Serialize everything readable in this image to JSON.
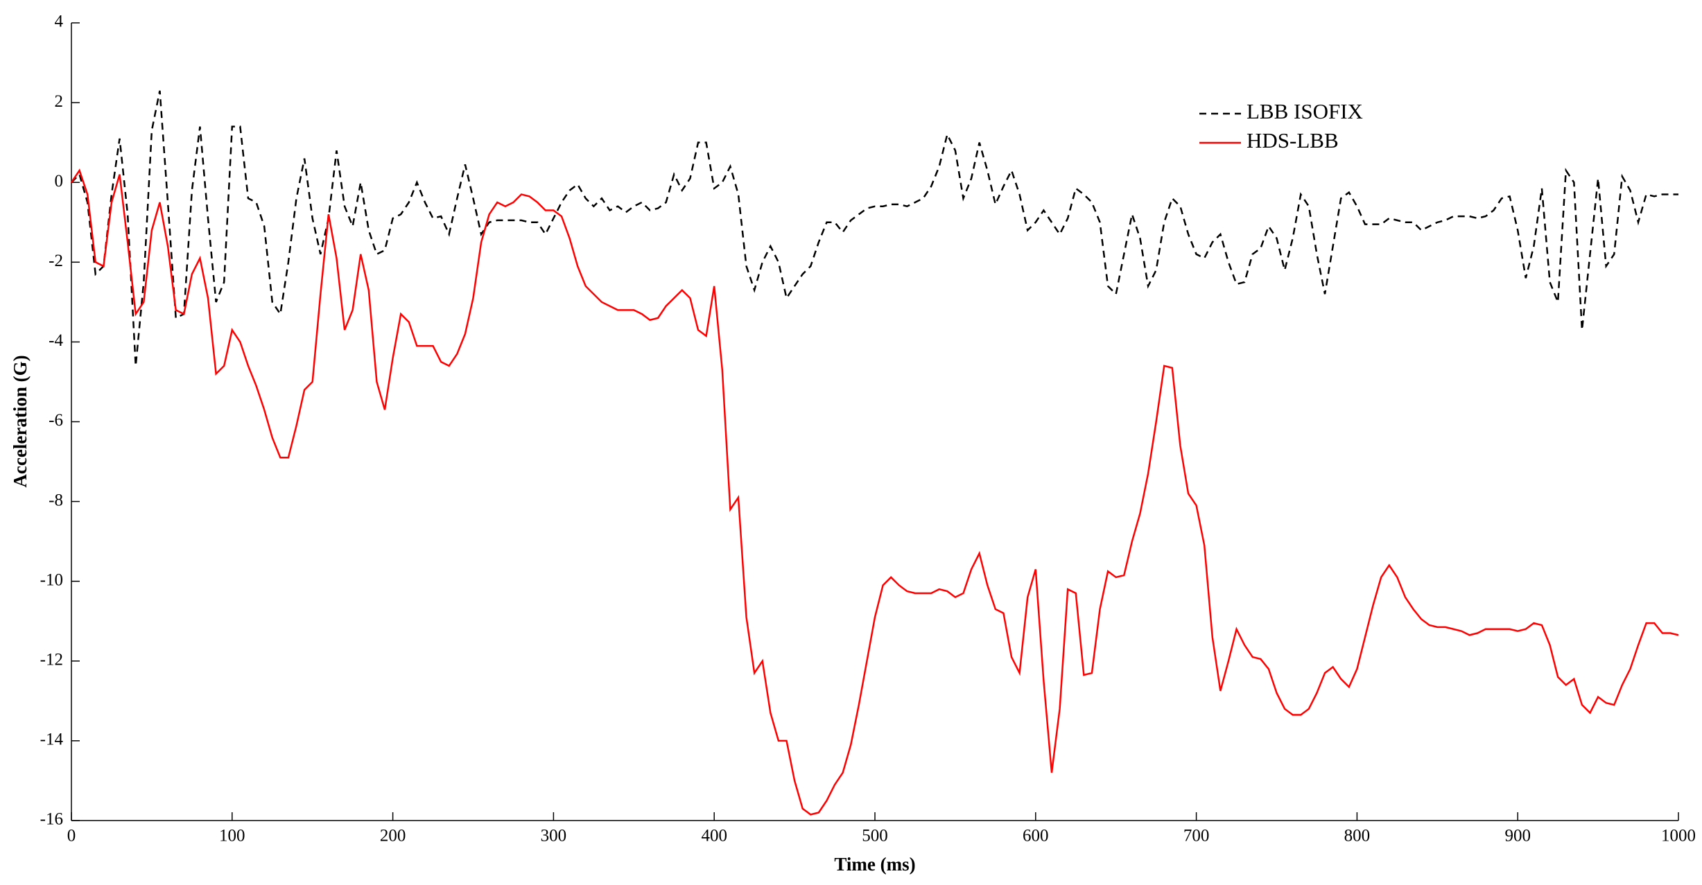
{
  "chart_data": {
    "type": "line",
    "xlabel": "Time (ms)",
    "ylabel": "Acceleration (G)",
    "x": [
      0,
      5,
      10,
      15,
      20,
      25,
      30,
      35,
      40,
      45,
      50,
      55,
      60,
      65,
      70,
      75,
      80,
      85,
      90,
      95,
      100,
      105,
      110,
      115,
      120,
      125,
      130,
      135,
      140,
      145,
      150,
      155,
      160,
      165,
      170,
      175,
      180,
      185,
      190,
      195,
      200,
      205,
      210,
      215,
      220,
      225,
      230,
      235,
      240,
      245,
      250,
      255,
      260,
      265,
      270,
      275,
      280,
      285,
      290,
      295,
      300,
      305,
      310,
      315,
      320,
      325,
      330,
      335,
      340,
      345,
      350,
      355,
      360,
      365,
      370,
      375,
      380,
      385,
      390,
      395,
      400,
      405,
      410,
      415,
      420,
      425,
      430,
      435,
      440,
      445,
      450,
      455,
      460,
      465,
      470,
      475,
      480,
      485,
      490,
      495,
      500,
      505,
      510,
      515,
      520,
      525,
      530,
      535,
      540,
      545,
      550,
      555,
      560,
      565,
      570,
      575,
      580,
      585,
      590,
      595,
      600,
      605,
      610,
      615,
      620,
      625,
      630,
      635,
      640,
      645,
      650,
      655,
      660,
      665,
      670,
      675,
      680,
      685,
      690,
      695,
      700,
      705,
      710,
      715,
      720,
      725,
      730,
      735,
      740,
      745,
      750,
      755,
      760,
      765,
      770,
      775,
      780,
      785,
      790,
      795,
      800,
      805,
      810,
      815,
      820,
      825,
      830,
      835,
      840,
      845,
      850,
      855,
      860,
      865,
      870,
      875,
      880,
      885,
      890,
      895,
      900,
      905,
      910,
      915,
      920,
      925,
      930,
      935,
      940,
      945,
      950,
      955,
      960,
      965,
      970,
      975,
      980,
      985,
      990,
      995,
      1000
    ],
    "series": [
      {
        "name": "LBB ISOFIX",
        "color": "#000000",
        "linestyle": "dashed",
        "values": [
          0,
          0.2,
          -0.5,
          -2.3,
          -2.1,
          -0.3,
          1.1,
          -0.8,
          -4.6,
          -2.5,
          1.3,
          2.3,
          -0.5,
          -3.4,
          -3.3,
          -0.2,
          1.4,
          -0.9,
          -3.0,
          -2.5,
          1.4,
          1.4,
          -0.4,
          -0.5,
          -1.1,
          -3.0,
          -3.3,
          -2.0,
          -0.4,
          0.6,
          -0.9,
          -1.8,
          -0.9,
          0.8,
          -0.6,
          -1.1,
          0.0,
          -1.2,
          -1.8,
          -1.7,
          -0.9,
          -0.8,
          -0.5,
          0.0,
          -0.5,
          -0.9,
          -0.85,
          -1.3,
          -0.4,
          0.45,
          -0.4,
          -1.3,
          -1.0,
          -0.95,
          -0.95,
          -0.95,
          -0.95,
          -1.0,
          -1.0,
          -1.3,
          -0.9,
          -0.5,
          -0.2,
          -0.05,
          -0.4,
          -0.6,
          -0.4,
          -0.7,
          -0.6,
          -0.75,
          -0.6,
          -0.5,
          -0.7,
          -0.65,
          -0.5,
          0.2,
          -0.2,
          0.1,
          1.0,
          1.0,
          -0.15,
          0.0,
          0.4,
          -0.3,
          -2.1,
          -2.7,
          -2.0,
          -1.6,
          -2.0,
          -2.9,
          -2.6,
          -2.3,
          -2.1,
          -1.5,
          -1.0,
          -1.0,
          -1.25,
          -0.95,
          -0.8,
          -0.65,
          -0.6,
          -0.6,
          -0.55,
          -0.55,
          -0.6,
          -0.5,
          -0.4,
          -0.1,
          0.4,
          1.2,
          0.8,
          -0.4,
          0.1,
          1.0,
          0.3,
          -0.55,
          -0.1,
          0.3,
          -0.3,
          -1.2,
          -1.0,
          -0.7,
          -1.0,
          -1.3,
          -0.9,
          -0.15,
          -0.3,
          -0.5,
          -1.0,
          -2.6,
          -2.8,
          -1.8,
          -0.8,
          -1.4,
          -2.6,
          -2.2,
          -1.0,
          -0.4,
          -0.6,
          -1.3,
          -1.8,
          -1.9,
          -1.5,
          -1.3,
          -2.0,
          -2.55,
          -2.5,
          -1.8,
          -1.65,
          -1.1,
          -1.4,
          -2.2,
          -1.4,
          -0.3,
          -0.6,
          -1.8,
          -2.8,
          -1.6,
          -0.4,
          -0.25,
          -0.6,
          -1.05,
          -1.05,
          -1.05,
          -0.9,
          -0.95,
          -1.0,
          -1.0,
          -1.2,
          -1.1,
          -1.0,
          -0.95,
          -0.85,
          -0.85,
          -0.85,
          -0.9,
          -0.85,
          -0.7,
          -0.4,
          -0.35,
          -1.2,
          -2.4,
          -1.6,
          -0.15,
          -2.5,
          -3.0,
          0.3,
          0.0,
          -3.7,
          -1.8,
          0.1,
          -2.1,
          -1.8,
          0.15,
          -0.2,
          -1.0,
          -0.3,
          -0.35,
          -0.3,
          -0.3,
          -0.3
        ]
      },
      {
        "name": "HDS-LBB",
        "color": "#ff0000",
        "linestyle": "solid",
        "values": [
          0,
          0.3,
          -0.3,
          -2.0,
          -2.1,
          -0.5,
          0.2,
          -1.5,
          -3.3,
          -3.0,
          -1.2,
          -0.5,
          -1.6,
          -3.2,
          -3.3,
          -2.3,
          -1.9,
          -2.9,
          -4.8,
          -4.6,
          -3.7,
          -4.0,
          -4.6,
          -5.1,
          -5.7,
          -6.4,
          -6.9,
          -6.9,
          -6.1,
          -5.2,
          -5.0,
          -2.8,
          -0.8,
          -1.9,
          -3.7,
          -3.2,
          -1.8,
          -2.7,
          -5.0,
          -5.7,
          -4.4,
          -3.3,
          -3.5,
          -4.1,
          -4.1,
          -4.1,
          -4.5,
          -4.6,
          -4.3,
          -3.8,
          -2.9,
          -1.5,
          -0.8,
          -0.5,
          -0.6,
          -0.5,
          -0.3,
          -0.35,
          -0.5,
          -0.7,
          -0.7,
          -0.85,
          -1.4,
          -2.1,
          -2.6,
          -2.8,
          -3.0,
          -3.1,
          -3.2,
          -3.2,
          -3.2,
          -3.3,
          -3.45,
          -3.4,
          -3.1,
          -2.9,
          -2.7,
          -2.9,
          -3.7,
          -3.85,
          -2.6,
          -4.7,
          -8.2,
          -7.9,
          -10.9,
          -12.3,
          -12.0,
          -13.3,
          -14.0,
          -14.0,
          -15.0,
          -15.7,
          -15.85,
          -15.8,
          -15.5,
          -15.1,
          -14.8,
          -14.1,
          -13.1,
          -12.0,
          -10.9,
          -10.1,
          -9.9,
          -10.1,
          -10.25,
          -10.3,
          -10.3,
          -10.3,
          -10.2,
          -10.25,
          -10.4,
          -10.3,
          -9.7,
          -9.3,
          -10.1,
          -10.7,
          -10.8,
          -11.9,
          -12.3,
          -10.4,
          -9.7,
          -12.5,
          -14.8,
          -13.2,
          -10.2,
          -10.3,
          -12.35,
          -12.3,
          -10.7,
          -9.75,
          -9.9,
          -9.85,
          -9.0,
          -8.3,
          -7.3,
          -6.0,
          -4.6,
          -4.65,
          -6.6,
          -7.8,
          -8.1,
          -9.1,
          -11.4,
          -12.75,
          -12.0,
          -11.2,
          -11.6,
          -11.9,
          -11.95,
          -12.2,
          -12.8,
          -13.2,
          -13.35,
          -13.35,
          -13.2,
          -12.8,
          -12.3,
          -12.15,
          -12.45,
          -12.65,
          -12.2,
          -11.4,
          -10.6,
          -9.9,
          -9.6,
          -9.9,
          -10.4,
          -10.7,
          -10.95,
          -11.1,
          -11.15,
          -11.15,
          -11.2,
          -11.25,
          -11.35,
          -11.3,
          -11.2,
          -11.2,
          -11.2,
          -11.2,
          -11.25,
          -11.2,
          -11.05,
          -11.1,
          -11.6,
          -12.4,
          -12.6,
          -12.45,
          -13.1,
          -13.3,
          -12.9,
          -13.05,
          -13.1,
          -12.6,
          -12.2,
          -11.6,
          -11.05,
          -11.05,
          -11.3,
          -11.3,
          -11.35
        ]
      }
    ],
    "xlim": [
      0,
      1000
    ],
    "xticks": [
      0,
      100,
      200,
      300,
      400,
      500,
      600,
      700,
      800,
      900,
      1000
    ],
    "ylim": [
      -16,
      4
    ],
    "yticks": [
      -16,
      -14,
      -12,
      -10,
      -8,
      -6,
      -4,
      -2,
      0,
      2,
      4
    ],
    "grid": false,
    "legend": "upper right"
  }
}
